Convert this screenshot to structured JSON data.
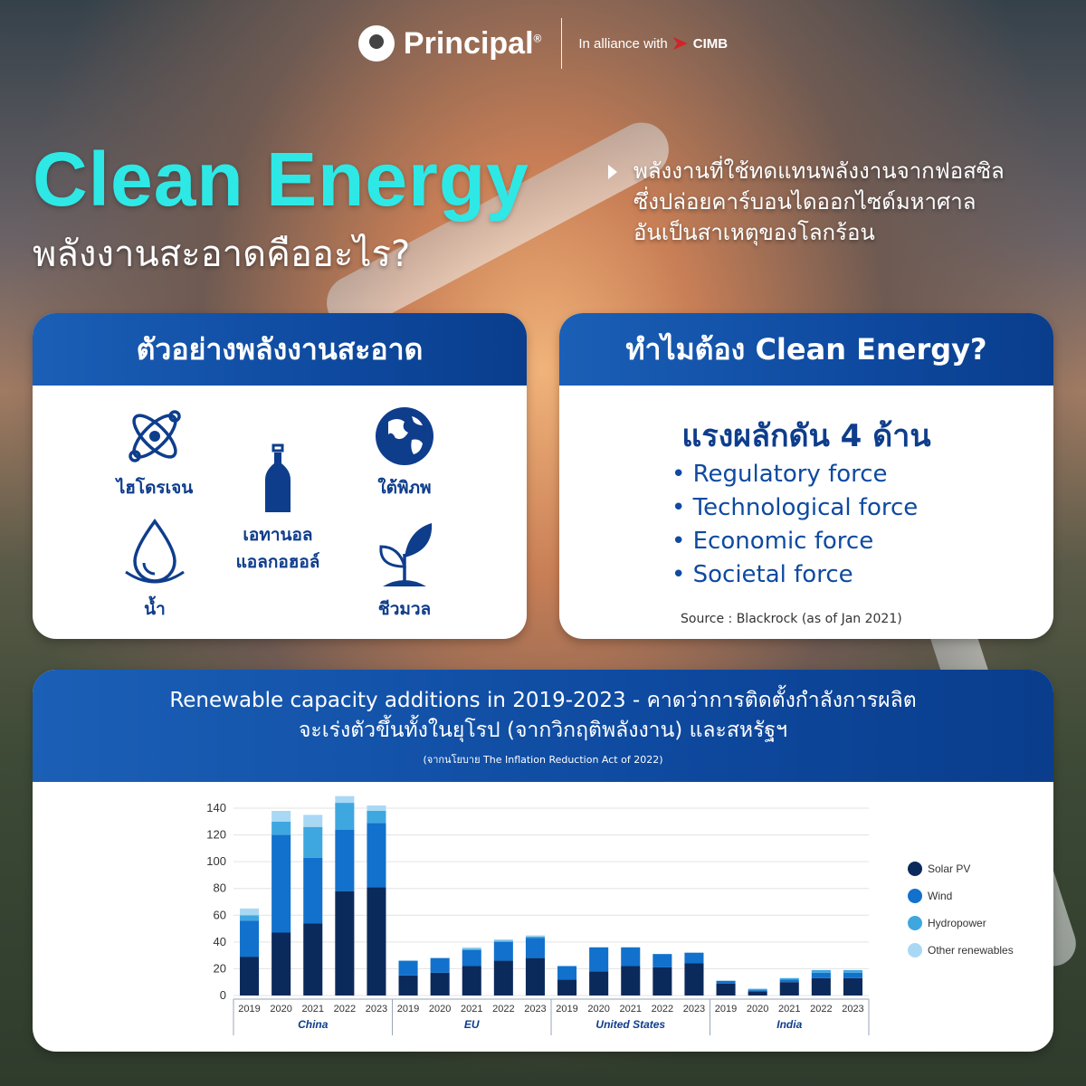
{
  "header": {
    "brand": "Principal",
    "brand_mark": "®",
    "alliance_text": "In alliance with",
    "partner": "CIMB"
  },
  "hero": {
    "title": "Clean Energy",
    "subtitle": "พลังงานสะอาดคืออะไร?",
    "description": [
      "พลังงานที่ใช้ทดแทนพลังงานจากฟอสซิล",
      "ซึ่งปล่อยคาร์บอนไดออกไซด์มหาศาล",
      "อันเป็นสาเหตุของโลกร้อน"
    ]
  },
  "examples": {
    "title": "ตัวอย่างพลังงานสะอาด",
    "items": [
      {
        "label": "ไฮโดรเจน",
        "icon": "atom-icon"
      },
      {
        "label": "ใต้พิภพ",
        "icon": "globe-icon"
      },
      {
        "label": "เอทานอล",
        "label2": "แอลกอฮอล์",
        "icon": "bottle-icon"
      },
      {
        "label": "น้ำ",
        "icon": "water-drop-icon"
      },
      {
        "label": "ชีวมวล",
        "icon": "sprout-icon"
      }
    ]
  },
  "why": {
    "title": "ทำไมต้อง Clean Energy?",
    "heading": "แรงผลักดัน 4 ด้าน",
    "forces": [
      "Regulatory force",
      "Technological force",
      "Economic force",
      "Societal force"
    ],
    "source": "Source : Blackrock (as of Jan 2021)"
  },
  "chart_section": {
    "title_line1": "Renewable capacity additions in 2019-2023 - คาดว่าการติดตั้งกำลังการผลิต",
    "title_line2": "จะเร่งตัวขึ้นทั้งในยุโรป (จากวิกฤติพลังงาน) และสหรัฐฯ",
    "note": "(จากนโยบาย The Inflation Reduction Act of 2022)"
  },
  "chart_data": {
    "type": "bar",
    "stacked": true,
    "groups": [
      "China",
      "EU",
      "United States",
      "India"
    ],
    "years": [
      "2019",
      "2020",
      "2021",
      "2022",
      "2023"
    ],
    "ylim": [
      0,
      140
    ],
    "yticks": [
      0,
      20,
      40,
      60,
      80,
      100,
      120,
      140
    ],
    "grid": true,
    "legend_position": "right",
    "series": [
      {
        "name": "Solar PV",
        "color": "#0b2a5c",
        "values": [
          [
            29,
            47,
            54,
            78,
            81
          ],
          [
            15,
            17,
            22,
            26,
            28
          ],
          [
            12,
            18,
            22,
            21,
            24
          ],
          [
            9,
            3,
            10,
            13,
            13
          ]
        ]
      },
      {
        "name": "Wind",
        "color": "#1271cc",
        "values": [
          [
            27,
            73,
            49,
            46,
            48
          ],
          [
            11,
            11,
            12,
            14,
            15
          ],
          [
            10,
            18,
            14,
            10,
            8
          ],
          [
            2,
            1,
            2,
            4,
            4
          ]
        ]
      },
      {
        "name": "Hydropower",
        "color": "#3fa7e0",
        "values": [
          [
            4,
            10,
            23,
            20,
            9
          ],
          [
            0,
            0,
            1,
            1,
            1
          ],
          [
            0,
            0,
            0,
            0,
            0
          ],
          [
            0,
            1,
            1,
            2,
            2
          ]
        ]
      },
      {
        "name": "Other renewables",
        "color": "#a9d8f4",
        "values": [
          [
            5,
            8,
            9,
            5,
            4
          ],
          [
            0,
            0,
            1,
            1,
            1
          ],
          [
            0,
            0,
            0,
            0,
            0
          ],
          [
            0,
            0,
            0,
            0,
            0
          ]
        ]
      }
    ]
  }
}
